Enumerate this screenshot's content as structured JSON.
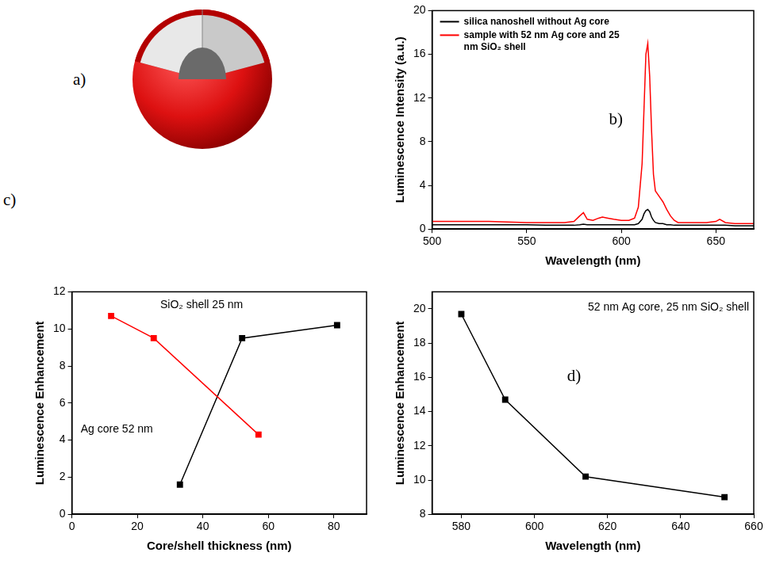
{
  "diagram": {
    "panel_label": "a)"
  },
  "chart_data": [
    {
      "panel_label": "b)",
      "type": "line",
      "x_label": "Wavelength (nm)",
      "y_label": "Luminescence Intensity (a.u.)",
      "x": [
        500,
        510,
        520,
        530,
        540,
        550,
        560,
        570,
        575,
        578,
        580,
        582,
        585,
        588,
        590,
        593,
        596,
        600,
        604,
        607,
        609,
        611,
        612,
        613,
        614,
        615,
        616,
        617,
        618,
        620,
        622,
        624,
        626,
        628,
        630,
        635,
        640,
        645,
        650,
        652,
        655,
        660,
        665,
        670
      ],
      "series": [
        {
          "name": "silica nanoshell without Ag core",
          "color": "#000000",
          "values": [
            0.4,
            0.4,
            0.4,
            0.4,
            0.4,
            0.4,
            0.35,
            0.35,
            0.35,
            0.4,
            0.45,
            0.4,
            0.4,
            0.4,
            0.4,
            0.4,
            0.4,
            0.4,
            0.4,
            0.4,
            0.5,
            0.9,
            1.4,
            1.7,
            1.8,
            1.6,
            1.1,
            0.8,
            0.6,
            0.5,
            0.5,
            0.4,
            0.4,
            0.35,
            0.35,
            0.35,
            0.35,
            0.35,
            0.35,
            0.35,
            0.35,
            0.3,
            0.3,
            0.3
          ]
        },
        {
          "name": "sample with 52 nm Ag core and 25 nm SiO₂ shell",
          "color": "#ff0000",
          "values": [
            0.7,
            0.7,
            0.7,
            0.7,
            0.65,
            0.6,
            0.6,
            0.6,
            0.7,
            1.2,
            1.5,
            0.9,
            0.8,
            1.0,
            1.1,
            1.0,
            0.9,
            0.8,
            0.8,
            1.0,
            2.0,
            6,
            11,
            16,
            17,
            14,
            9,
            5,
            3.5,
            3.0,
            2.5,
            1.8,
            1.2,
            0.8,
            0.6,
            0.6,
            0.6,
            0.6,
            0.7,
            0.9,
            0.6,
            0.5,
            0.5,
            0.5
          ]
        }
      ],
      "xlim": [
        500,
        670
      ],
      "xticks": [
        500,
        550,
        600,
        650
      ],
      "ylim": [
        0,
        20
      ],
      "yticks": [
        0,
        4,
        8,
        12,
        16,
        20
      ],
      "legend": "upper left",
      "grid": false
    },
    {
      "panel_label": "c)",
      "type": "line",
      "x_label": "Core/shell thickness (nm)",
      "y_label": "Luminescence Enhancement",
      "series": [
        {
          "name": "Ag core 52 nm",
          "color": "#ff0000",
          "marker": "square",
          "x": [
            12,
            25,
            57
          ],
          "values": [
            10.7,
            9.5,
            4.3
          ]
        },
        {
          "name": "SiO₂ shell 25 nm",
          "color": "#000000",
          "marker": "square",
          "x": [
            33,
            52,
            81
          ],
          "values": [
            1.6,
            9.5,
            10.2
          ]
        }
      ],
      "xlim": [
        0,
        90
      ],
      "xticks": [
        0,
        20,
        40,
        60,
        80
      ],
      "ylim": [
        0,
        12
      ],
      "yticks": [
        0,
        2,
        4,
        6,
        8,
        10,
        12
      ],
      "grid": false
    },
    {
      "panel_label": "d)",
      "type": "line",
      "x_label": "Wavelength (nm)",
      "y_label": "Luminescence Enhancement",
      "annotations": [
        "52 nm Ag core, 25 nm SiO₂ shell"
      ],
      "x": [
        580,
        592,
        614,
        652
      ],
      "values": [
        19.7,
        14.7,
        10.2,
        9.0
      ],
      "color": "#000000",
      "marker": "square",
      "xlim": [
        572,
        660
      ],
      "xticks": [
        580,
        600,
        620,
        640,
        660
      ],
      "ylim": [
        8,
        21
      ],
      "yticks": [
        8,
        10,
        12,
        14,
        16,
        18,
        20
      ],
      "grid": false
    }
  ]
}
